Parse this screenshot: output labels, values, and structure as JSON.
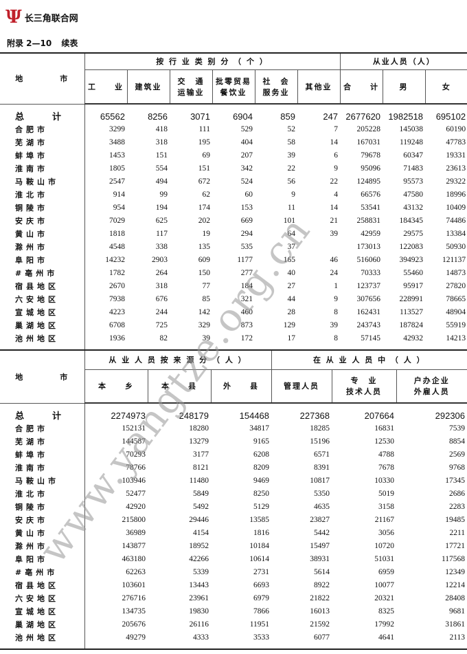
{
  "header": {
    "logo_mark": "Ψ",
    "site_name": "长三角联合网"
  },
  "caption": {
    "number": "附录 2—10",
    "label": "续表"
  },
  "watermark": "www.yangtze.org.cn",
  "table1": {
    "region_header": "地　　　　市",
    "group1": "按 行 业 类 别 分 （ 个 ）",
    "group2": "从业人员（人）",
    "columns": [
      "工　　业",
      "建筑业",
      "交　通 运输业",
      "批零贸易 餐饮业",
      "社　会 服务业",
      "其他业",
      "合　　计",
      "男",
      "女"
    ],
    "rows": [
      {
        "name": "总　　计",
        "values": [
          "65562",
          "8256",
          "3071",
          "6904",
          "859",
          "247",
          "2677620",
          "1982518",
          "695102"
        ]
      },
      {
        "name": "合肥市",
        "values": [
          "3299",
          "418",
          "111",
          "529",
          "52",
          "7",
          "205228",
          "145038",
          "60190"
        ]
      },
      {
        "name": "芜湖市",
        "values": [
          "3488",
          "318",
          "195",
          "404",
          "58",
          "14",
          "167031",
          "119248",
          "47783"
        ]
      },
      {
        "name": "蚌埠市",
        "values": [
          "1453",
          "151",
          "69",
          "207",
          "39",
          "6",
          "79678",
          "60347",
          "19331"
        ]
      },
      {
        "name": "淮南市",
        "values": [
          "1805",
          "554",
          "151",
          "342",
          "22",
          "9",
          "95096",
          "71483",
          "23613"
        ]
      },
      {
        "name": "马鞍山市",
        "values": [
          "2547",
          "494",
          "672",
          "524",
          "56",
          "22",
          "124895",
          "95573",
          "29322"
        ]
      },
      {
        "name": "淮北市",
        "values": [
          "914",
          "99",
          "62",
          "60",
          "9",
          "4",
          "66576",
          "47580",
          "18996"
        ]
      },
      {
        "name": "铜陵市",
        "values": [
          "954",
          "194",
          "174",
          "153",
          "11",
          "14",
          "53541",
          "43132",
          "10409"
        ]
      },
      {
        "name": "安庆市",
        "values": [
          "7029",
          "625",
          "202",
          "669",
          "101",
          "21",
          "258831",
          "184345",
          "74486"
        ]
      },
      {
        "name": "黄山市",
        "values": [
          "1818",
          "117",
          "19",
          "294",
          "64",
          "39",
          "42959",
          "29575",
          "13384"
        ]
      },
      {
        "name": "滁州市",
        "values": [
          "4548",
          "338",
          "135",
          "535",
          "37",
          "",
          "173013",
          "122083",
          "50930"
        ]
      },
      {
        "name": "阜阳市",
        "values": [
          "14232",
          "2903",
          "609",
          "1177",
          "165",
          "46",
          "516060",
          "394923",
          "121137"
        ]
      },
      {
        "name": "#亳州市",
        "values": [
          "1782",
          "264",
          "150",
          "277",
          "40",
          "24",
          "70333",
          "55460",
          "14873"
        ]
      },
      {
        "name": "宿县地区",
        "values": [
          "2670",
          "318",
          "77",
          "184",
          "27",
          "1",
          "123737",
          "95917",
          "27820"
        ]
      },
      {
        "name": "六安地区",
        "values": [
          "7938",
          "676",
          "85",
          "321",
          "44",
          "9",
          "307656",
          "228991",
          "78665"
        ]
      },
      {
        "name": "宣城地区",
        "values": [
          "4223",
          "244",
          "142",
          "460",
          "28",
          "8",
          "162431",
          "113527",
          "48904"
        ]
      },
      {
        "name": "巢湖地区",
        "values": [
          "6708",
          "725",
          "329",
          "873",
          "129",
          "39",
          "243743",
          "187824",
          "55919"
        ]
      },
      {
        "name": "池州地区",
        "values": [
          "1936",
          "82",
          "39",
          "172",
          "17",
          "8",
          "57145",
          "42932",
          "14213"
        ]
      }
    ]
  },
  "table2": {
    "region_header": "地　　　　市",
    "group1": "从 业 人 员 按 来 源 分 （ 人 ）",
    "group2": "在 从 业 人 员 中 （ 人 ）",
    "columns": [
      "本　　乡",
      "本　　县",
      "外　　县",
      "管理人员",
      "专　业 技术人员",
      "户办企业 外雇人员"
    ],
    "rows": [
      {
        "name": "总　　计",
        "values": [
          "2274973",
          "248179",
          "154468",
          "227368",
          "207664",
          "292306"
        ]
      },
      {
        "name": "合肥市",
        "values": [
          "152131",
          "18280",
          "34817",
          "18285",
          "16831",
          "7539"
        ]
      },
      {
        "name": "芜湖市",
        "values": [
          "144587",
          "13279",
          "9165",
          "15196",
          "12530",
          "8854"
        ]
      },
      {
        "name": "蚌埠市",
        "values": [
          "70293",
          "3177",
          "6208",
          "6571",
          "4788",
          "2569"
        ]
      },
      {
        "name": "淮南市",
        "values": [
          "78766",
          "8121",
          "8209",
          "8391",
          "7678",
          "9768"
        ]
      },
      {
        "name": "马鞍山市",
        "values": [
          "103946",
          "11480",
          "9469",
          "10817",
          "10330",
          "17345"
        ]
      },
      {
        "name": "淮北市",
        "values": [
          "52477",
          "5849",
          "8250",
          "5350",
          "5019",
          "2686"
        ]
      },
      {
        "name": "铜陵市",
        "values": [
          "42920",
          "5492",
          "5129",
          "4635",
          "3158",
          "2283"
        ]
      },
      {
        "name": "安庆市",
        "values": [
          "215800",
          "29446",
          "13585",
          "23827",
          "21167",
          "19485"
        ]
      },
      {
        "name": "黄山市",
        "values": [
          "36989",
          "4154",
          "1816",
          "5442",
          "3056",
          "2211"
        ]
      },
      {
        "name": "滁州市",
        "values": [
          "143877",
          "18952",
          "10184",
          "15497",
          "10720",
          "17721"
        ]
      },
      {
        "name": "阜阳市",
        "values": [
          "463180",
          "42266",
          "10614",
          "38931",
          "51031",
          "117568"
        ]
      },
      {
        "name": "#亳州市",
        "values": [
          "62263",
          "5339",
          "2731",
          "5614",
          "6959",
          "12349"
        ]
      },
      {
        "name": "宿县地区",
        "values": [
          "103601",
          "13443",
          "6693",
          "8922",
          "10077",
          "12214"
        ]
      },
      {
        "name": "六安地区",
        "values": [
          "276716",
          "23961",
          "6979",
          "21822",
          "20321",
          "28408"
        ]
      },
      {
        "name": "宣城地区",
        "values": [
          "134735",
          "19830",
          "7866",
          "16013",
          "8325",
          "9681"
        ]
      },
      {
        "name": "巢湖地区",
        "values": [
          "205676",
          "26116",
          "11951",
          "21592",
          "17992",
          "31861"
        ]
      },
      {
        "name": "池州地区",
        "values": [
          "49279",
          "4333",
          "3533",
          "6077",
          "4641",
          "2113"
        ]
      }
    ]
  }
}
